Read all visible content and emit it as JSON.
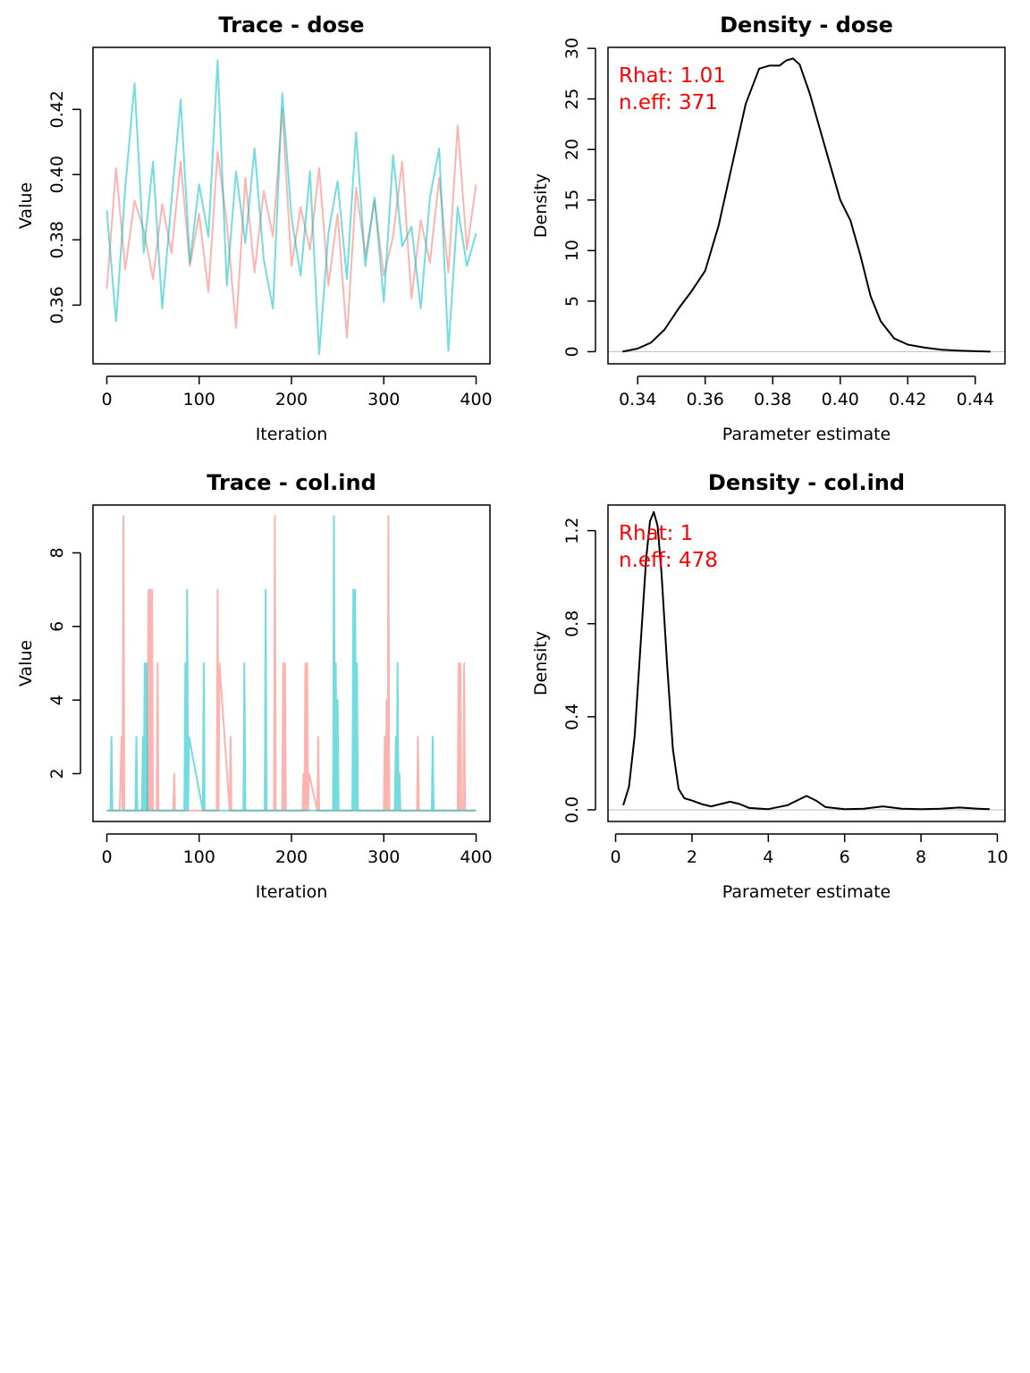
{
  "colors": {
    "chain1": "#F8766D",
    "chain2": "#00BFC4",
    "annotation": "#FF0000",
    "zero_line": "#BEBEBE"
  },
  "chart_data": [
    {
      "type": "line",
      "title": "Trace - dose",
      "xlabel": "Iteration",
      "ylabel": "Value",
      "xlim": [
        -15,
        415
      ],
      "ylim": [
        0.342,
        0.439
      ],
      "xticks": [
        0,
        100,
        200,
        300,
        400
      ],
      "yticks": [
        0.36,
        0.38,
        0.4,
        0.42
      ],
      "xtick_labels": [
        "0",
        "100",
        "200",
        "300",
        "400"
      ],
      "ytick_labels": [
        "0.36",
        "0.38",
        "0.40",
        "0.42"
      ],
      "series": [
        {
          "color": "#F8766D",
          "opacity": 0.55,
          "x": [
            0,
            10,
            20,
            30,
            40,
            50,
            60,
            70,
            80,
            90,
            100,
            110,
            120,
            130,
            140,
            150,
            160,
            170,
            180,
            190,
            200,
            210,
            220,
            230,
            240,
            250,
            260,
            270,
            280,
            290,
            300,
            310,
            320,
            330,
            340,
            350,
            360,
            370,
            380,
            390,
            400
          ],
          "values": [
            0.365,
            0.402,
            0.371,
            0.392,
            0.383,
            0.368,
            0.391,
            0.376,
            0.404,
            0.372,
            0.388,
            0.364,
            0.407,
            0.385,
            0.353,
            0.399,
            0.37,
            0.395,
            0.381,
            0.42,
            0.372,
            0.39,
            0.377,
            0.402,
            0.366,
            0.388,
            0.35,
            0.396,
            0.375,
            0.392,
            0.369,
            0.381,
            0.404,
            0.362,
            0.386,
            0.373,
            0.399,
            0.37,
            0.415,
            0.377,
            0.397
          ]
        },
        {
          "color": "#00BFC4",
          "opacity": 0.55,
          "x": [
            0,
            10,
            20,
            30,
            40,
            50,
            60,
            70,
            80,
            90,
            100,
            110,
            120,
            130,
            140,
            150,
            160,
            170,
            180,
            190,
            200,
            210,
            220,
            230,
            240,
            250,
            260,
            270,
            280,
            290,
            300,
            310,
            320,
            330,
            340,
            350,
            360,
            370,
            380,
            390,
            400
          ],
          "values": [
            0.389,
            0.355,
            0.396,
            0.428,
            0.376,
            0.404,
            0.359,
            0.392,
            0.423,
            0.373,
            0.397,
            0.381,
            0.435,
            0.366,
            0.401,
            0.379,
            0.408,
            0.374,
            0.359,
            0.425,
            0.387,
            0.369,
            0.401,
            0.345,
            0.382,
            0.398,
            0.368,
            0.413,
            0.372,
            0.393,
            0.361,
            0.406,
            0.378,
            0.384,
            0.359,
            0.393,
            0.408,
            0.346,
            0.39,
            0.372,
            0.382
          ]
        }
      ]
    },
    {
      "type": "line",
      "title": "Density - dose",
      "xlabel": "Parameter estimate",
      "ylabel": "Density",
      "xlim": [
        0.3312,
        0.4488
      ],
      "ylim": [
        -1.2,
        30.1
      ],
      "xticks": [
        0.34,
        0.36,
        0.38,
        0.4,
        0.42,
        0.44
      ],
      "yticks": [
        0,
        5,
        10,
        15,
        20,
        25,
        30
      ],
      "xtick_labels": [
        "0.34",
        "0.36",
        "0.38",
        "0.40",
        "0.42",
        "0.44"
      ],
      "ytick_labels": [
        "0",
        "5",
        "10",
        "15",
        "20",
        "25",
        "30"
      ],
      "annotations": [
        "Rhat: 1.01",
        "n.eff: 371"
      ],
      "series": [
        {
          "color": "#000000",
          "x": [
            0.3355,
            0.34,
            0.344,
            0.348,
            0.352,
            0.356,
            0.36,
            0.364,
            0.368,
            0.372,
            0.376,
            0.379,
            0.382,
            0.384,
            0.386,
            0.388,
            0.391,
            0.394,
            0.397,
            0.4,
            0.403,
            0.406,
            0.409,
            0.412,
            0.416,
            0.42,
            0.425,
            0.43,
            0.435,
            0.44,
            0.4445
          ],
          "values": [
            0.0,
            0.3,
            0.9,
            2.2,
            4.2,
            6.0,
            8.0,
            12.5,
            18.5,
            24.5,
            28.0,
            28.3,
            28.3,
            28.8,
            29.0,
            28.4,
            25.5,
            22.0,
            18.5,
            15.0,
            13.0,
            9.5,
            5.5,
            3.0,
            1.3,
            0.7,
            0.4,
            0.2,
            0.1,
            0.05,
            0.0
          ]
        }
      ]
    },
    {
      "type": "line",
      "title": "Trace - col.ind",
      "xlabel": "Iteration",
      "ylabel": "Value",
      "xlim": [
        -15,
        415
      ],
      "ylim": [
        0.7,
        9.3
      ],
      "xticks": [
        0,
        100,
        200,
        300,
        400
      ],
      "yticks": [
        2,
        4,
        6,
        8
      ],
      "xtick_labels": [
        "0",
        "100",
        "200",
        "300",
        "400"
      ],
      "ytick_labels": [
        "2",
        "4",
        "6",
        "8"
      ],
      "series": [
        {
          "color": "#F8766D",
          "opacity": 0.55,
          "x": [
            0,
            14,
            16,
            17,
            18,
            19,
            44,
            45,
            46,
            47,
            48,
            49,
            50,
            54,
            55,
            56,
            72,
            73,
            74,
            119,
            120,
            121,
            122,
            133,
            134,
            135,
            181,
            182,
            183,
            190,
            191,
            192,
            193,
            194,
            212,
            213,
            214,
            215,
            216,
            217,
            218,
            219,
            228,
            229,
            230,
            300,
            301,
            302,
            303,
            304,
            305,
            306,
            307,
            336,
            337,
            338,
            380,
            381,
            382,
            383,
            384,
            386,
            387,
            388,
            389,
            400
          ],
          "values": [
            1,
            1,
            3,
            1,
            9,
            1,
            1,
            7,
            1,
            7,
            1,
            7,
            1,
            1,
            5,
            1,
            1,
            2,
            1,
            1,
            7,
            1,
            5,
            1,
            3,
            1,
            1,
            9,
            1,
            1,
            5,
            1,
            5,
            1,
            1,
            2,
            1,
            5,
            1,
            5,
            1,
            2,
            1,
            3,
            1,
            1,
            3,
            1,
            4,
            1,
            9,
            1,
            1,
            1,
            3,
            1,
            1,
            5,
            1,
            5,
            1,
            1,
            5,
            1,
            1,
            1
          ]
        },
        {
          "color": "#00BFC4",
          "opacity": 0.55,
          "x": [
            0,
            4,
            5,
            6,
            31,
            32,
            33,
            38,
            39,
            40,
            41,
            42,
            43,
            44,
            84,
            85,
            86,
            87,
            88,
            89,
            104,
            105,
            106,
            148,
            149,
            150,
            171,
            172,
            173,
            245,
            246,
            247,
            248,
            249,
            250,
            251,
            266,
            267,
            268,
            269,
            270,
            271,
            272,
            312,
            313,
            314,
            315,
            316,
            317,
            318,
            352,
            353,
            354,
            400
          ],
          "values": [
            1,
            1,
            3,
            1,
            1,
            3,
            1,
            1,
            3,
            1,
            5,
            1,
            5,
            1,
            1,
            5,
            1,
            7,
            1,
            3,
            1,
            5,
            1,
            1,
            5,
            1,
            1,
            7,
            1,
            1,
            9,
            1,
            5,
            1,
            4,
            1,
            1,
            7,
            1,
            7,
            1,
            5,
            1,
            1,
            3,
            1,
            5,
            1,
            2,
            1,
            1,
            3,
            1,
            1
          ]
        }
      ]
    },
    {
      "type": "line",
      "title": "Density - col.ind",
      "xlabel": "Parameter estimate",
      "ylabel": "Density",
      "xlim": [
        -0.2,
        10.2
      ],
      "ylim": [
        -0.05,
        1.31
      ],
      "xticks": [
        0,
        2,
        4,
        6,
        8,
        10
      ],
      "yticks": [
        0.0,
        0.4,
        0.8,
        1.2
      ],
      "xtick_labels": [
        "0",
        "2",
        "4",
        "6",
        "8",
        "10"
      ],
      "ytick_labels": [
        "0.0",
        "0.4",
        "0.8",
        "1.2"
      ],
      "annotations": [
        "Rhat: 1",
        "n.eff: 478"
      ],
      "series": [
        {
          "color": "#000000",
          "x": [
            0.2,
            0.35,
            0.5,
            0.65,
            0.8,
            0.9,
            1.0,
            1.1,
            1.2,
            1.35,
            1.5,
            1.65,
            1.8,
            2.0,
            2.25,
            2.5,
            2.75,
            3.0,
            3.25,
            3.5,
            4.0,
            4.5,
            4.75,
            5.0,
            5.25,
            5.5,
            6.0,
            6.5,
            7.0,
            7.5,
            8.0,
            8.5,
            9.0,
            9.5,
            9.8
          ],
          "values": [
            0.02,
            0.1,
            0.32,
            0.7,
            1.08,
            1.24,
            1.28,
            1.22,
            1.02,
            0.62,
            0.26,
            0.09,
            0.05,
            0.04,
            0.025,
            0.015,
            0.025,
            0.035,
            0.025,
            0.008,
            0.003,
            0.02,
            0.04,
            0.06,
            0.04,
            0.012,
            0.003,
            0.005,
            0.015,
            0.005,
            0.003,
            0.005,
            0.01,
            0.005,
            0.003
          ]
        }
      ]
    }
  ]
}
